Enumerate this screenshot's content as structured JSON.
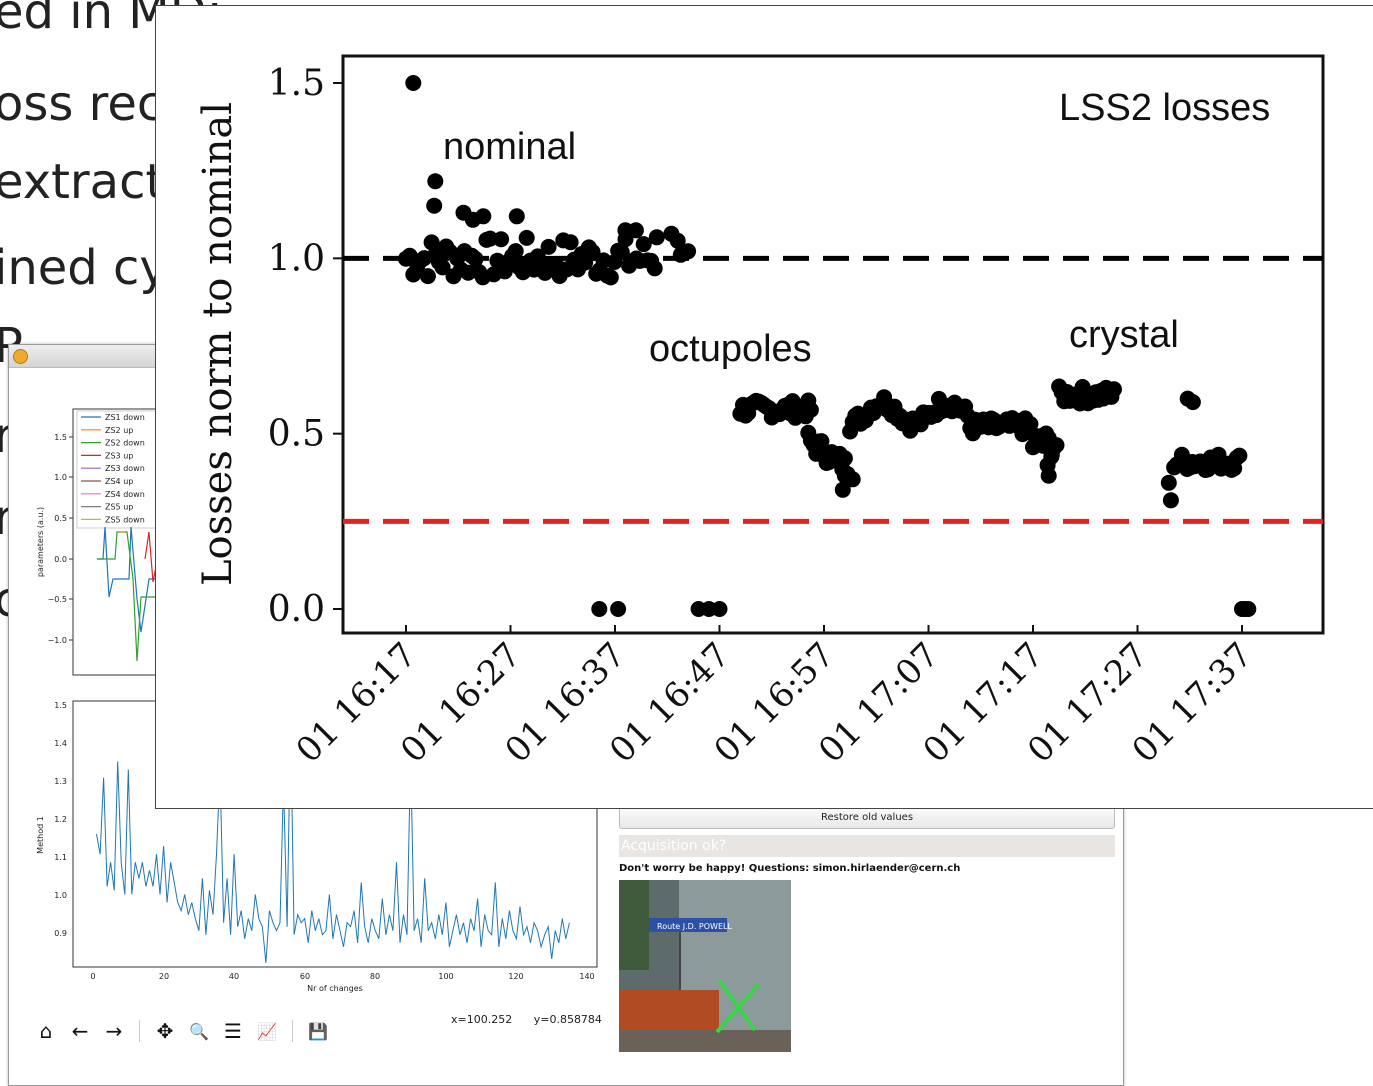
{
  "slide": {
    "bullets": [
      "ed in MD:",
      "oss rec",
      "extract",
      "ined cy",
      "P",
      "r",
      "r",
      "c"
    ]
  },
  "window": {
    "legend": [
      "ZS1 down",
      "ZS2 up",
      "ZS2 down",
      "ZS3 up",
      "ZS3 down",
      "ZS4 up",
      "ZS4 down",
      "ZS5 up",
      "ZS5 down"
    ],
    "legend_colors": [
      "#1f77b4",
      "#ff7f0e",
      "#2ca02c",
      "#d62728",
      "#9467bd",
      "#8c564b",
      "#e377c2",
      "#7f7f7f",
      "#bcbd22"
    ],
    "top_plot": {
      "ylabel": "parameters (a.u.)",
      "yticks": [
        "1.5",
        "1.0",
        "0.5",
        "0.0",
        "−0.5",
        "−1.0"
      ]
    },
    "bottom_plot": {
      "ylabel": "Method 1",
      "xlabel": "Nr of changes",
      "yticks": [
        "1.5",
        "1.4",
        "1.3",
        "1.2",
        "1.1",
        "1.0",
        "0.9"
      ],
      "xticks": [
        "0",
        "20",
        "40",
        "60",
        "80",
        "100",
        "120",
        "140"
      ]
    },
    "toolbar": {
      "home_icon": "⌂",
      "back_icon": "←",
      "forward_icon": "→",
      "pan_icon": "✥",
      "zoom_icon": "🔍",
      "config_icon": "☰",
      "edit_icon": "📈",
      "save_icon": "💾"
    },
    "coords": {
      "x": "x=100.252",
      "y": "y=0.858784"
    },
    "restore_label": "Restore old values",
    "acq_label": "Acquisition ok?",
    "happy_text": "Don't worry be happy! Questions: simon.hirlaender@cern.ch",
    "sign_text": "Route J.D. POWELL"
  },
  "chart_data": [
    {
      "type": "scatter",
      "title": "",
      "ylabel": "Losses norm to nominal",
      "xlabel": "",
      "ylim": [
        0,
        1.55
      ],
      "yticks": [
        "0.0",
        "0.5",
        "1.0",
        "1.5"
      ],
      "xticks": [
        "01 16:17",
        "01 16:27",
        "01 16:37",
        "01 16:47",
        "01 16:57",
        "01 17:07",
        "01 17:17",
        "01 17:27",
        "01 17:37"
      ],
      "annotations": [
        "LSS2 losses",
        "nominal",
        "octupoles",
        "crystal"
      ],
      "hlines": [
        {
          "y": 1.0,
          "color": "#000000",
          "style": "dashed"
        },
        {
          "y": 0.25,
          "color": "#e8201f",
          "style": "dashed"
        }
      ],
      "series": [
        {
          "segment": "nominal",
          "x_range": [
            "01 16:17",
            "01 16:42"
          ],
          "approx_level": 1.0
        },
        {
          "segment": "octupoles",
          "x_range": [
            "01 16:43",
            "01 17:23"
          ],
          "approx_level": 0.55
        },
        {
          "segment": "crystal",
          "x_range": [
            "01 17:17",
            "01 17:37"
          ],
          "approx_level": 0.45
        }
      ]
    }
  ]
}
